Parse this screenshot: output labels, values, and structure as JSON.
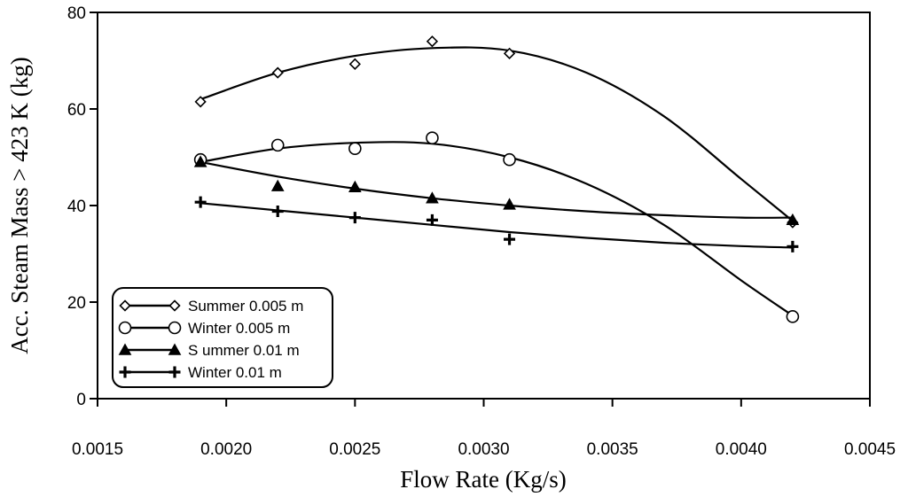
{
  "chart_data": {
    "type": "scatter",
    "title": "",
    "xlabel": "Flow Rate (Kg/s)",
    "ylabel": "Acc. Steam Mass > 423 K (kg)",
    "xlim": [
      0.0015,
      0.0045
    ],
    "ylim": [
      0,
      80
    ],
    "x_ticks": [
      "0.0015",
      "0.0020",
      "0.0025",
      "0.0030",
      "0.0035",
      "0.0040",
      "0.0045"
    ],
    "y_ticks": [
      "0",
      "20",
      "40",
      "60",
      "80"
    ],
    "grid": false,
    "legend_position": "bottom-left",
    "series": [
      {
        "name": "Summer 0.005 m",
        "marker": "diamond-open",
        "x": [
          0.0019,
          0.0022,
          0.0025,
          0.0028,
          0.0031,
          0.0042
        ],
        "y": [
          61.5,
          67.5,
          69.3,
          74.0,
          71.5,
          36.5
        ],
        "trend": [
          [
            0.0019,
            62.0
          ],
          [
            0.0022,
            67.5
          ],
          [
            0.0025,
            71.0
          ],
          [
            0.0028,
            72.6
          ],
          [
            0.0031,
            72.1
          ],
          [
            0.0034,
            67.5
          ],
          [
            0.0037,
            58.5
          ],
          [
            0.004,
            45.5
          ],
          [
            0.0042,
            36.8
          ]
        ]
      },
      {
        "name": "Winter 0.005 m",
        "marker": "circle-open",
        "x": [
          0.0019,
          0.0022,
          0.0025,
          0.0028,
          0.0031,
          0.0042
        ],
        "y": [
          49.5,
          52.5,
          51.8,
          54.0,
          49.5,
          17.0
        ],
        "trend": [
          [
            0.0019,
            49.0
          ],
          [
            0.0022,
            51.8
          ],
          [
            0.0025,
            53.0
          ],
          [
            0.0028,
            52.8
          ],
          [
            0.0031,
            50.0
          ],
          [
            0.0034,
            44.5
          ],
          [
            0.0037,
            36.0
          ],
          [
            0.004,
            24.5
          ],
          [
            0.0042,
            17.2
          ]
        ]
      },
      {
        "name": "S ummer 0.01 m",
        "marker": "triangle-filled",
        "x": [
          0.0019,
          0.0022,
          0.0025,
          0.0028,
          0.0031,
          0.0042
        ],
        "y": [
          49.0,
          44.0,
          43.8,
          41.5,
          40.2,
          37.0
        ],
        "trend": [
          [
            0.0019,
            49.0
          ],
          [
            0.0022,
            46.0
          ],
          [
            0.0025,
            43.5
          ],
          [
            0.0028,
            41.5
          ],
          [
            0.0031,
            40.0
          ],
          [
            0.0034,
            38.8
          ],
          [
            0.0037,
            38.0
          ],
          [
            0.004,
            37.5
          ],
          [
            0.0042,
            37.5
          ]
        ]
      },
      {
        "name": "Winter 0.01 m",
        "marker": "plus",
        "x": [
          0.0019,
          0.0022,
          0.0025,
          0.0028,
          0.0031,
          0.0042
        ],
        "y": [
          40.7,
          38.8,
          37.5,
          37.0,
          33.0,
          31.5
        ],
        "trend": [
          [
            0.0019,
            40.5
          ],
          [
            0.0022,
            39.0
          ],
          [
            0.0025,
            37.5
          ],
          [
            0.0028,
            36.0
          ],
          [
            0.0031,
            34.5
          ],
          [
            0.0034,
            33.3
          ],
          [
            0.0037,
            32.3
          ],
          [
            0.004,
            31.6
          ],
          [
            0.0042,
            31.3
          ]
        ]
      }
    ]
  }
}
